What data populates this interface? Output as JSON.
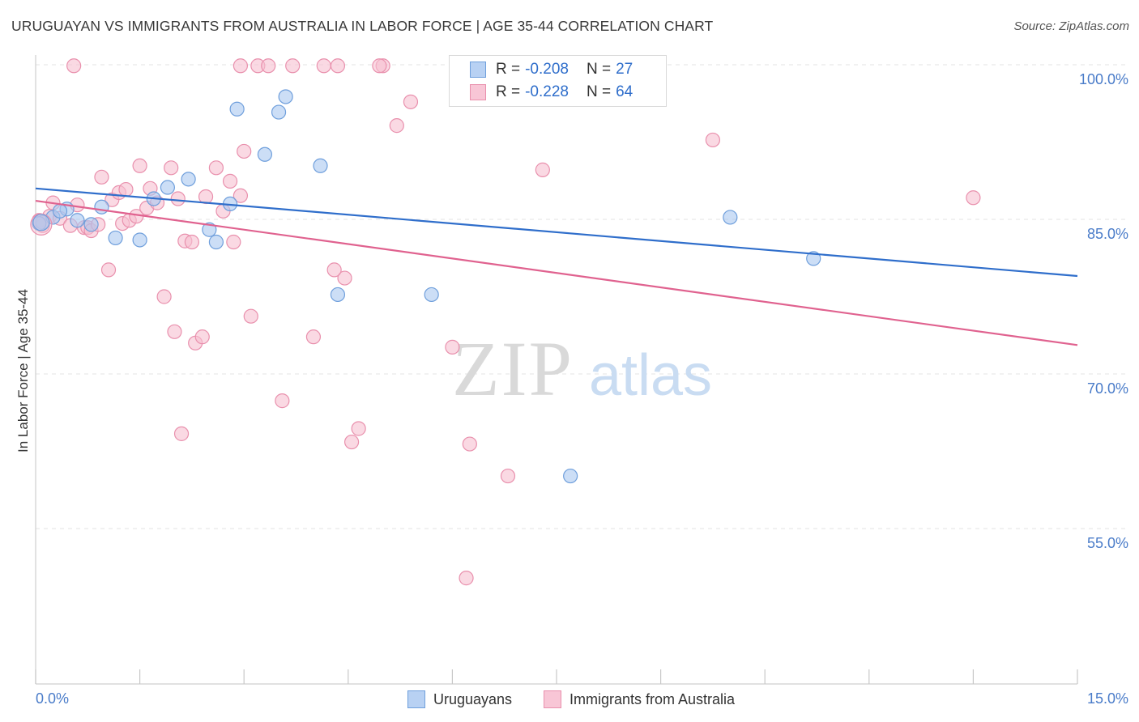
{
  "title": "URUGUAYAN VS IMMIGRANTS FROM AUSTRALIA IN LABOR FORCE | AGE 35-44 CORRELATION CHART",
  "source": "Source: ZipAtlas.com",
  "watermark": {
    "zip": "ZIP",
    "atlas": "atlas"
  },
  "legend": {
    "series1": {
      "r_label": "R =",
      "r_value": "-0.208",
      "n_label": "N =",
      "n_value": "27"
    },
    "series2": {
      "r_label": "R =",
      "r_value": "-0.228",
      "n_label": "N =",
      "n_value": "64"
    }
  },
  "bottom_legend": {
    "series1": "Uruguayans",
    "series2": "Immigrants from Australia"
  },
  "colors": {
    "uruguayans_fill": "#aac8f0",
    "uruguayans_stroke": "#6f9fdc",
    "uruguayans_line": "#2f6ecb",
    "australia_fill": "#f7bfd0",
    "australia_stroke": "#e990ad",
    "australia_line": "#e0628f",
    "tick_label": "#4a7cc9",
    "grid": "#e3e3e3"
  },
  "chart_data": {
    "type": "scatter",
    "title": "URUGUAYAN VS IMMIGRANTS FROM AUSTRALIA IN LABOR FORCE | AGE 35-44 CORRELATION CHART",
    "xlabel": "",
    "ylabel": "In Labor Force | Age 35-44",
    "xlim": [
      0,
      15
    ],
    "ylim": [
      40,
      101
    ],
    "x_tick_labels": [
      "0.0%",
      "15.0%"
    ],
    "y_ticks": [
      100,
      85,
      70,
      55
    ],
    "y_tick_labels": [
      "100.0%",
      "85.0%",
      "70.0%",
      "55.0%"
    ],
    "grid": true,
    "legend_position": "top-center",
    "series": [
      {
        "name": "Uruguayans",
        "x": [
          0.1,
          0.25,
          0.45,
          0.6,
          0.8,
          0.95,
          1.15,
          1.5,
          1.7,
          1.9,
          2.2,
          2.5,
          2.6,
          2.8,
          2.9,
          3.3,
          3.5,
          3.6,
          4.1,
          4.35,
          5.7,
          6.7,
          7.7,
          10.0,
          11.2,
          0.05,
          0.35
        ],
        "y": [
          84.7,
          85.2,
          86.0,
          84.9,
          84.5,
          86.2,
          83.2,
          83.0,
          87.0,
          88.1,
          88.9,
          84.0,
          82.8,
          86.5,
          95.7,
          91.3,
          95.4,
          96.9,
          90.2,
          77.7,
          77.7,
          97.1,
          60.1,
          85.2,
          81.2,
          84.6,
          85.8
        ],
        "trend": {
          "x": [
            0,
            15
          ],
          "y": [
            88.0,
            79.5
          ]
        }
      },
      {
        "name": "Immigrants from Australia",
        "x": [
          0.05,
          0.1,
          0.2,
          0.25,
          0.35,
          0.5,
          0.6,
          0.7,
          0.75,
          0.8,
          0.9,
          0.95,
          1.05,
          1.1,
          1.2,
          1.25,
          1.3,
          1.35,
          1.45,
          1.5,
          1.6,
          1.65,
          1.75,
          1.85,
          1.95,
          2.0,
          2.05,
          2.15,
          2.25,
          2.3,
          2.4,
          2.45,
          2.6,
          2.7,
          2.8,
          2.85,
          2.95,
          3.0,
          3.1,
          3.2,
          3.35,
          3.55,
          3.7,
          4.0,
          4.15,
          4.35,
          4.45,
          4.55,
          4.65,
          5.0,
          5.2,
          5.4,
          6.0,
          6.2,
          6.25,
          6.8,
          7.3,
          9.75,
          13.5,
          2.1,
          2.95,
          4.3,
          4.95,
          0.55
        ],
        "y": [
          84.9,
          84.4,
          85.3,
          86.6,
          85.1,
          84.4,
          86.4,
          84.2,
          84.2,
          83.9,
          84.5,
          89.1,
          80.1,
          86.9,
          87.6,
          84.6,
          87.9,
          84.9,
          85.3,
          90.2,
          86.1,
          88.0,
          86.6,
          77.5,
          90.0,
          74.1,
          87.0,
          82.9,
          82.8,
          73.0,
          73.6,
          87.2,
          90.0,
          85.8,
          88.7,
          82.8,
          87.3,
          91.6,
          75.6,
          99.9,
          99.9,
          67.4,
          99.9,
          73.6,
          99.9,
          99.9,
          79.3,
          63.4,
          64.7,
          99.9,
          94.1,
          96.4,
          72.6,
          50.2,
          63.2,
          60.1,
          89.8,
          92.7,
          87.1,
          64.2,
          99.9,
          80.1,
          99.9,
          99.9
        ],
        "trend": {
          "x": [
            0,
            15
          ],
          "y": [
            86.8,
            72.8
          ]
        }
      }
    ]
  }
}
